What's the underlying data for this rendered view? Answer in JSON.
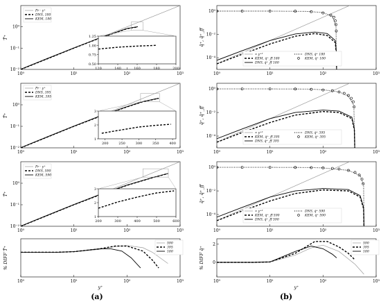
{
  "panel_labels": {
    "a": "(a)",
    "b": "(b)"
  },
  "chart_data": [
    {
      "id": "a1",
      "type": "line",
      "x_scale": "log",
      "y_scale": "log",
      "xlim": [
        1,
        1000
      ],
      "ylim": [
        0.01,
        10
      ],
      "xticks": [
        "10⁰",
        "10¹",
        "10²",
        "10³"
      ],
      "yticks": [
        "10⁻²",
        "10⁻¹",
        "10⁰"
      ],
      "ylabel": "T̄⁺",
      "legend": {
        "position": "top-left",
        "entries": [
          "Pr · y⁺",
          "DNS, 180",
          "KEM, 180"
        ]
      },
      "series": [
        {
          "name": "Pr · y⁺",
          "style": "thin",
          "x": [
            1,
            1000
          ],
          "y": [
            0.01,
            10
          ]
        },
        {
          "name": "DNS, 180",
          "style": "dashed",
          "x": [
            1,
            3,
            10,
            30,
            100,
            160
          ],
          "y": [
            0.01,
            0.03,
            0.1,
            0.29,
            0.82,
            1.0
          ]
        },
        {
          "name": "KEM, 180",
          "style": "solid",
          "x": [
            1,
            3,
            10,
            30,
            100,
            160
          ],
          "y": [
            0.0102,
            0.031,
            0.102,
            0.295,
            0.83,
            1.01
          ]
        }
      ],
      "inset": {
        "xlim": [
          120,
          200
        ],
        "ylim": [
          0.5,
          1.25
        ],
        "xticks": [
          "120",
          "140",
          "160",
          "180",
          "200"
        ],
        "yticks": [
          "0.50",
          "0.75",
          "1.00",
          "1.25"
        ],
        "series": [
          {
            "x": [
              120,
              140,
              160,
              180
            ],
            "y": [
              0.9,
              0.95,
              0.98,
              1.0
            ]
          }
        ]
      }
    },
    {
      "id": "a2",
      "type": "line",
      "x_scale": "log",
      "y_scale": "log",
      "xlim": [
        1,
        1000
      ],
      "ylim": [
        0.01,
        10
      ],
      "xticks": [
        "10⁰",
        "10¹",
        "10²",
        "10³"
      ],
      "yticks": [
        "10⁻²",
        "10⁻¹",
        "10⁰"
      ],
      "ylabel": "T̄⁺",
      "legend": {
        "position": "top-left",
        "entries": [
          "Pr · y⁺",
          "DNS, 395",
          "KEM, 395"
        ]
      },
      "series": [
        {
          "name": "Pr · y⁺",
          "style": "thin",
          "x": [
            1,
            1000
          ],
          "y": [
            0.01,
            10
          ]
        },
        {
          "name": "DNS, 395",
          "style": "dashed",
          "x": [
            1,
            3,
            10,
            30,
            100,
            200,
            395
          ],
          "y": [
            0.01,
            0.03,
            0.1,
            0.28,
            0.8,
            1.4,
            2.0
          ]
        },
        {
          "name": "KEM, 395",
          "style": "solid",
          "x": [
            1,
            3,
            10,
            30,
            100,
            200,
            395
          ],
          "y": [
            0.0102,
            0.031,
            0.102,
            0.29,
            0.82,
            1.42,
            2.02
          ]
        }
      ],
      "inset": {
        "xlim": [
          180,
          410
        ],
        "ylim": [
          1,
          3
        ],
        "xticks": [
          "200",
          "250",
          "300",
          "350",
          "400"
        ],
        "yticks": [
          "1",
          "2",
          "3"
        ],
        "series": [
          {
            "x": [
              190,
              250,
              300,
              350,
              395
            ],
            "y": [
              1.4,
              1.65,
              1.85,
              1.97,
              2.05
            ]
          }
        ]
      }
    },
    {
      "id": "a3",
      "type": "line",
      "x_scale": "log",
      "y_scale": "log",
      "xlim": [
        1,
        1000
      ],
      "ylim": [
        0.01,
        10
      ],
      "xticks": [
        "10⁰",
        "10¹",
        "10²",
        "10³"
      ],
      "yticks": [
        "10⁻²",
        "10⁻¹",
        "10⁰"
      ],
      "ylabel": "T̄⁺",
      "legend": {
        "position": "top-left",
        "entries": [
          "Pr · y⁺",
          "DNS, 590",
          "KEM, 590"
        ]
      },
      "series": [
        {
          "name": "Pr · y⁺",
          "style": "thin",
          "x": [
            1,
            1000
          ],
          "y": [
            0.01,
            10
          ]
        },
        {
          "name": "DNS, 590",
          "style": "dashed",
          "x": [
            1,
            3,
            10,
            30,
            100,
            300,
            590
          ],
          "y": [
            0.01,
            0.03,
            0.1,
            0.28,
            0.8,
            1.8,
            2.8
          ]
        },
        {
          "name": "KEM, 590",
          "style": "solid",
          "x": [
            1,
            3,
            10,
            30,
            100,
            300,
            590
          ],
          "y": [
            0.0102,
            0.031,
            0.102,
            0.29,
            0.82,
            1.82,
            2.82
          ]
        }
      ],
      "inset": {
        "xlim": [
          200,
          600
        ],
        "ylim": [
          1,
          3
        ],
        "xticks": [
          "200",
          "300",
          "400",
          "500",
          "600"
        ],
        "yticks": [
          "1",
          "2",
          "3"
        ],
        "series": [
          {
            "x": [
              200,
              300,
              400,
              500,
              590
            ],
            "y": [
              1.6,
              2.05,
              2.4,
              2.7,
              2.85
            ]
          }
        ]
      }
    },
    {
      "id": "a4",
      "type": "line",
      "x_scale": "log",
      "y_scale": "linear",
      "xlim": [
        1,
        1000
      ],
      "ylim": [
        -2.2,
        1.2
      ],
      "xticks": [
        "10⁰",
        "10¹",
        "10²",
        "10³"
      ],
      "yticks": [],
      "xlabel": "y⁺",
      "ylabel": "% DIFF T̄⁺",
      "legend": {
        "position": "top-right",
        "entries": [
          "590",
          "395",
          "180"
        ]
      },
      "series": [
        {
          "name": "590",
          "style": "thin",
          "x": [
            1,
            5,
            10,
            30,
            60,
            100,
            200,
            300,
            590
          ],
          "y": [
            0.0,
            0.0,
            0.05,
            0.25,
            0.5,
            0.6,
            0.4,
            0.0,
            -1.0
          ]
        },
        {
          "name": "395",
          "style": "dashed",
          "x": [
            1,
            5,
            10,
            30,
            60,
            100,
            200,
            300,
            395
          ],
          "y": [
            0.0,
            0.0,
            0.05,
            0.3,
            0.55,
            0.55,
            0.1,
            -0.7,
            -1.4
          ]
        },
        {
          "name": "180",
          "style": "solid",
          "x": [
            1,
            5,
            10,
            30,
            50,
            80,
            120,
            180
          ],
          "y": [
            0.0,
            0.0,
            0.05,
            0.3,
            0.3,
            0.1,
            -0.5,
            -1.4
          ]
        }
      ]
    },
    {
      "id": "b1",
      "type": "line",
      "x_scale": "log",
      "y_scale": "log",
      "xlim": [
        1,
        1000
      ],
      "ylim": [
        1e-05,
        3
      ],
      "xticks": [
        "10⁰",
        "10¹",
        "10²",
        "10³"
      ],
      "yticks": [
        "10⁻⁴",
        "10⁻²",
        "10⁰"
      ],
      "ylabel": "q̄⁺, q̄⁺_ff",
      "legend": {
        "position": "bottom-left",
        "entries": [
          "∝ y⁺²",
          "KEM, q̄⁺_ff 180",
          "DNS, q̄⁺_ff 180",
          "DNS, q̄⁺ 180",
          "KEM, q̄⁺ 180"
        ]
      },
      "series": [
        {
          "name": "∝ y⁺²",
          "style": "thin",
          "x": [
            1,
            1000
          ],
          "y": [
            3e-05,
            30
          ]
        },
        {
          "name": "DNS, q̄⁺_ff 180",
          "style": "dashed",
          "x": [
            1,
            3,
            10,
            30,
            70,
            120,
            170,
            178,
            180
          ],
          "y": [
            3e-05,
            0.0002,
            0.0015,
            0.007,
            0.012,
            0.008,
            0.002,
            0.0002,
            1e-05
          ]
        },
        {
          "name": "KEM, q̄⁺_ff 180",
          "style": "solid",
          "x": [
            1,
            3,
            10,
            30,
            70,
            120,
            170,
            178,
            180
          ],
          "y": [
            6e-05,
            0.0004,
            0.003,
            0.011,
            0.016,
            0.012,
            0.003,
            0.0003,
            1e-05
          ]
        },
        {
          "name": "DNS, q̄⁺ 180",
          "style": "dotted",
          "x": [
            1,
            10,
            50,
            100,
            150,
            175,
            180
          ],
          "y": [
            1,
            1,
            0.95,
            0.75,
            0.35,
            0.05,
            1e-05
          ]
        },
        {
          "name": "KEM, q̄⁺ 180",
          "style": "circles",
          "x": [
            1,
            3,
            10,
            30,
            60,
            100,
            140,
            160,
            170,
            175,
            178
          ],
          "y": [
            1,
            1,
            1,
            0.97,
            0.88,
            0.7,
            0.45,
            0.3,
            0.15,
            0.07,
            0.02
          ]
        }
      ]
    },
    {
      "id": "b2",
      "type": "line",
      "x_scale": "log",
      "y_scale": "log",
      "xlim": [
        1,
        1000
      ],
      "ylim": [
        1e-05,
        3
      ],
      "xticks": [
        "10⁰",
        "10¹",
        "10²",
        "10³"
      ],
      "yticks": [
        "10⁻⁴",
        "10⁻²",
        "10⁰"
      ],
      "ylabel": "q̄⁺, q̄⁺_ff",
      "legend": {
        "position": "bottom-left",
        "entries": [
          "∝ y⁺²",
          "KEM, q̄⁺_ff 395",
          "DNS, q̄⁺_ff 395",
          "DNS, q̄⁺ 395",
          "KEM, q̄⁺ 395"
        ]
      },
      "series": [
        {
          "name": "∝ y⁺²",
          "style": "thin",
          "x": [
            1,
            1000
          ],
          "y": [
            3e-05,
            30
          ]
        },
        {
          "name": "DNS, q̄⁺_ff 395",
          "style": "dashed",
          "x": [
            1,
            3,
            10,
            30,
            100,
            200,
            350,
            390,
            395
          ],
          "y": [
            3e-05,
            0.0002,
            0.0014,
            0.006,
            0.012,
            0.01,
            0.003,
            0.0003,
            1e-05
          ]
        },
        {
          "name": "KEM, q̄⁺_ff 395",
          "style": "solid",
          "x": [
            1,
            3,
            10,
            30,
            100,
            200,
            350,
            390,
            395
          ],
          "y": [
            6e-05,
            0.0004,
            0.003,
            0.01,
            0.016,
            0.013,
            0.004,
            0.0004,
            1e-05
          ]
        },
        {
          "name": "DNS, q̄⁺ 395",
          "style": "dotted",
          "x": [
            1,
            10,
            50,
            100,
            200,
            300,
            380,
            395
          ],
          "y": [
            1,
            1,
            0.97,
            0.85,
            0.55,
            0.25,
            0.04,
            1e-05
          ]
        },
        {
          "name": "KEM, q̄⁺ 395",
          "style": "circles",
          "x": [
            1,
            3,
            10,
            30,
            60,
            100,
            150,
            200,
            250,
            300,
            340,
            370,
            385
          ],
          "y": [
            1,
            1,
            1,
            0.98,
            0.92,
            0.82,
            0.7,
            0.55,
            0.42,
            0.28,
            0.16,
            0.08,
            0.03
          ]
        }
      ]
    },
    {
      "id": "b3",
      "type": "line",
      "x_scale": "log",
      "y_scale": "log",
      "xlim": [
        1,
        1000
      ],
      "ylim": [
        1e-05,
        3
      ],
      "xticks": [
        "10⁰",
        "10¹",
        "10²",
        "10³"
      ],
      "yticks": [
        "10⁻⁴",
        "10⁻²",
        "10⁰"
      ],
      "ylabel": "q̄⁺, q̄⁺_ff",
      "legend": {
        "position": "bottom-left",
        "entries": [
          "∝ y⁺²",
          "KEM, q̄⁺_ff 590",
          "DNS, q̄⁺_ff 590",
          "DNS, q̄⁺ 590",
          "KEM, q̄⁺ 590"
        ]
      },
      "series": [
        {
          "name": "∝ y⁺²",
          "style": "thin",
          "x": [
            1,
            1000
          ],
          "y": [
            3e-05,
            30
          ]
        },
        {
          "name": "DNS, q̄⁺_ff 590",
          "style": "dashed",
          "x": [
            1,
            3,
            10,
            30,
            100,
            300,
            500,
            580,
            590
          ],
          "y": [
            3e-05,
            0.0002,
            0.0014,
            0.006,
            0.012,
            0.01,
            0.003,
            0.0003,
            1e-05
          ]
        },
        {
          "name": "KEM, q̄⁺_ff 590",
          "style": "solid",
          "x": [
            1,
            3,
            10,
            30,
            100,
            300,
            500,
            580,
            590
          ],
          "y": [
            6e-05,
            0.0004,
            0.003,
            0.01,
            0.016,
            0.013,
            0.004,
            0.0004,
            1e-05
          ]
        },
        {
          "name": "DNS, q̄⁺ 590",
          "style": "dotted",
          "x": [
            1,
            10,
            50,
            100,
            300,
            500,
            580,
            590
          ],
          "y": [
            1,
            1,
            0.98,
            0.9,
            0.55,
            0.2,
            0.03,
            1e-05
          ]
        },
        {
          "name": "KEM, q̄⁺ 590",
          "style": "circles",
          "x": [
            1,
            3,
            10,
            30,
            60,
            100,
            150,
            200,
            300,
            400,
            480,
            540,
            570
          ],
          "y": [
            1,
            1,
            1,
            0.98,
            0.95,
            0.9,
            0.82,
            0.72,
            0.55,
            0.37,
            0.22,
            0.1,
            0.04
          ]
        }
      ]
    },
    {
      "id": "b4",
      "type": "line",
      "x_scale": "log",
      "y_scale": "linear",
      "xlim": [
        1,
        1000
      ],
      "ylim": [
        -1.6,
        2.6
      ],
      "xticks": [
        "10⁰",
        "10¹",
        "10²",
        "10³"
      ],
      "yticks": [
        "0",
        "2"
      ],
      "xlabel": "y⁺",
      "ylabel": "% DIFF q̄⁺",
      "legend": {
        "position": "top-right",
        "entries": [
          "590",
          "395",
          "180"
        ]
      },
      "series": [
        {
          "name": "590",
          "style": "thin",
          "x": [
            1,
            5,
            10,
            30,
            60,
            100,
            200,
            400,
            590
          ],
          "y": [
            0.0,
            0.0,
            0.05,
            0.8,
            1.6,
            1.9,
            1.2,
            -0.2,
            -1.3
          ]
        },
        {
          "name": "395",
          "style": "dashed",
          "x": [
            1,
            5,
            10,
            30,
            70,
            120,
            200,
            300,
            395
          ],
          "y": [
            0.0,
            0.0,
            0.05,
            1.0,
            2.3,
            2.3,
            1.7,
            1.0,
            0.3
          ]
        },
        {
          "name": "180",
          "style": "solid",
          "x": [
            1,
            5,
            10,
            30,
            60,
            100,
            150,
            180
          ],
          "y": [
            0.0,
            0.0,
            0.05,
            1.2,
            1.8,
            1.5,
            0.9,
            0.5
          ]
        }
      ]
    }
  ]
}
